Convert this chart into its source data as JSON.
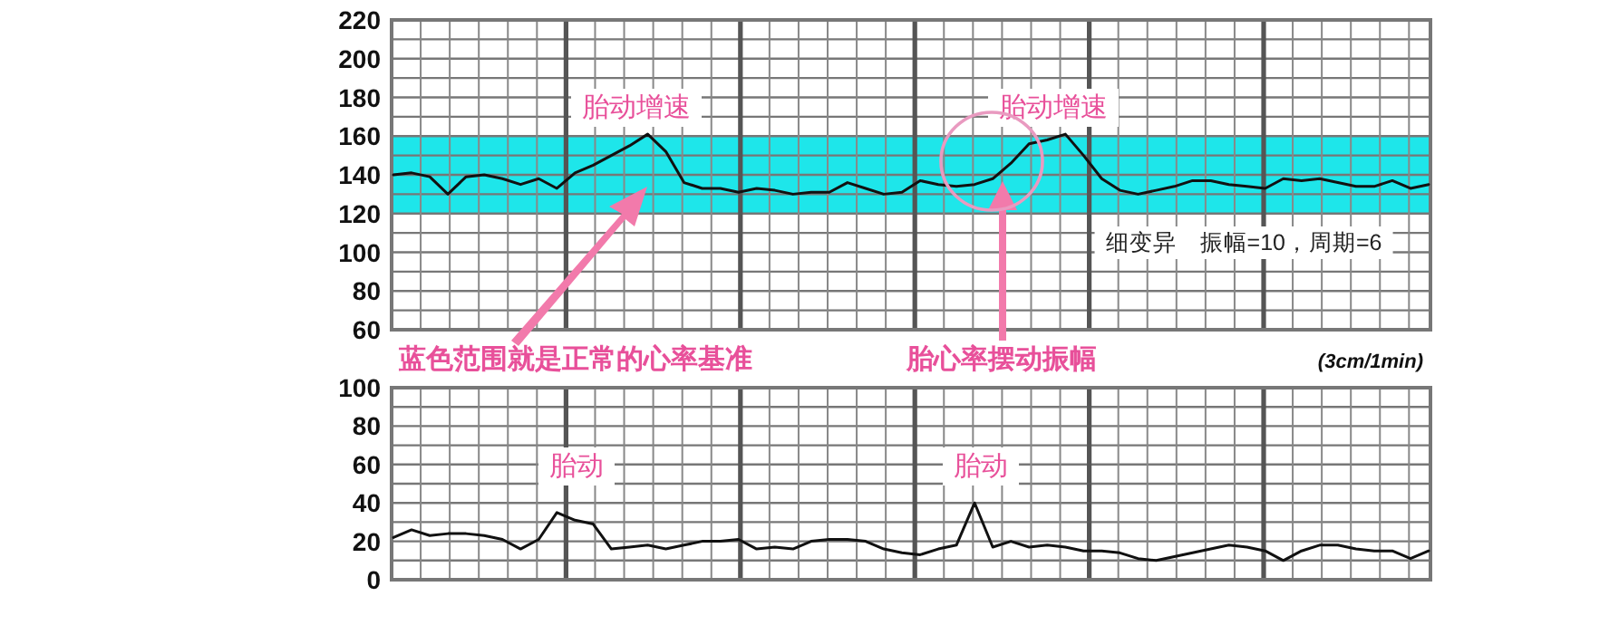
{
  "chart_data": [
    {
      "type": "line",
      "categories": [
        null,
        null,
        null,
        null,
        null,
        null,
        null,
        null,
        null,
        null,
        null,
        null,
        null,
        null,
        null,
        null,
        null,
        null,
        null,
        null,
        null,
        null,
        null,
        null,
        null,
        null,
        null,
        null,
        null,
        null,
        null,
        null,
        null,
        null,
        null,
        null,
        null,
        null,
        null,
        null,
        null,
        null,
        null,
        null,
        null,
        null,
        null,
        null,
        null,
        null,
        null,
        null,
        null,
        null,
        null,
        null,
        null,
        null
      ],
      "series": [
        {
          "color": "#111111",
          "values": [
            140,
            141,
            139,
            130,
            139,
            140,
            138,
            135,
            138,
            133,
            141,
            145,
            150,
            155,
            161,
            152,
            136,
            133,
            133,
            131,
            133,
            132,
            130,
            131,
            131,
            136,
            133,
            130,
            131,
            137,
            135,
            134,
            135,
            138,
            146,
            156,
            158,
            161,
            150,
            138,
            132,
            130,
            132,
            134,
            137,
            137,
            135,
            134,
            133,
            138,
            137,
            138,
            136,
            134,
            134,
            137,
            133,
            135
          ]
        }
      ],
      "ylim": [
        60,
        220
      ],
      "yticks": [
        60,
        80,
        100,
        120,
        140,
        160,
        180,
        200,
        220
      ],
      "grid": true,
      "bands": [
        {
          "axis": "y",
          "from": 120,
          "to": 160,
          "color": "#1ee6ea"
        }
      ],
      "annotations": [
        "胎动增速",
        "胎动增速",
        "细变异　振幅=10，周期=6",
        "蓝色范围就是正常的心率基准",
        "胎心率摆动振幅",
        "(3cm/1min)"
      ]
    },
    {
      "type": "line",
      "categories": [
        null,
        null,
        null,
        null,
        null,
        null,
        null,
        null,
        null,
        null,
        null,
        null,
        null,
        null,
        null,
        null,
        null,
        null,
        null,
        null,
        null,
        null,
        null,
        null,
        null,
        null,
        null,
        null,
        null,
        null,
        null,
        null,
        null,
        null,
        null,
        null,
        null,
        null,
        null,
        null,
        null,
        null,
        null,
        null,
        null,
        null,
        null,
        null,
        null,
        null,
        null,
        null,
        null,
        null,
        null,
        null,
        null,
        null
      ],
      "series": [
        {
          "color": "#111111",
          "values": [
            22,
            26,
            23,
            24,
            24,
            23,
            21,
            16,
            21,
            35,
            31,
            29,
            16,
            17,
            18,
            16,
            18,
            20,
            20,
            21,
            16,
            17,
            16,
            20,
            21,
            21,
            20,
            16,
            14,
            13,
            16,
            18,
            40,
            17,
            20,
            17,
            18,
            17,
            15,
            15,
            14,
            11,
            10,
            12,
            14,
            16,
            18,
            17,
            15,
            10,
            15,
            18,
            18,
            16,
            15,
            15,
            11,
            15
          ]
        }
      ],
      "ylim": [
        0,
        100
      ],
      "yticks": [
        0,
        20,
        40,
        60,
        80,
        100
      ],
      "grid": true,
      "annotations": [
        "胎动",
        "胎动"
      ]
    }
  ]
}
